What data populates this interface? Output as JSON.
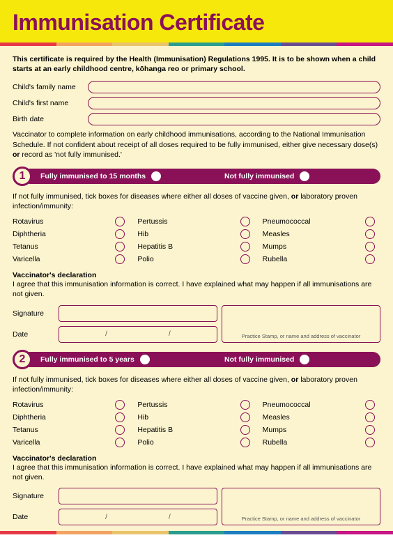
{
  "title": "Immunisation Certificate",
  "intro": "This certificate is required by the Health (Immunisation) Regulations 1995. It is to be shown when a child starts at an early childhood centre, kōhanga reo or primary school.",
  "fields": {
    "family_name_label": "Child's family name",
    "first_name_label": "Child's first name",
    "birth_date_label": "Birth date"
  },
  "vaccinator_note": "Vaccinator to complete information on early childhood immunisations, according to the National Immunisation Schedule. If not confident about receipt of all doses required to be fully immunised, either give necessary dose(s) <b>or</b> record as 'not fully immunised.'",
  "sections": [
    {
      "num": "1",
      "fully_label": "Fully immunised to 15 months",
      "not_fully_label": "Not fully immunised"
    },
    {
      "num": "2",
      "fully_label": "Fully immunised to 5 years",
      "not_fully_label": "Not fully immunised"
    }
  ],
  "tick_instr": "If not fully immunised, tick boxes for diseases where either all doses of vaccine given, <b>or</b> laboratory proven infection/immunity:",
  "diseases_col1": [
    "Rotavirus",
    "Diphtheria",
    "Tetanus",
    "Varicella"
  ],
  "diseases_col2": [
    "Pertussis",
    "Hib",
    "Hepatitis B",
    "Polio"
  ],
  "diseases_col3": [
    "Pneumococcal",
    "Measles",
    "Mumps",
    "Rubella"
  ],
  "declaration": {
    "title": "Vaccinator's declaration",
    "text": "I agree that this immunisation information is correct. I have explained what may happen if all immunisations are not given.",
    "signature_label": "Signature",
    "date_label": "Date",
    "date_sep": "/",
    "stamp_label": "Practice Stamp, or name and address of vaccinator"
  },
  "colors": {
    "page_bg": "#f7e80b",
    "content_bg": "#fcf4cf",
    "brand": "#8a1157",
    "rainbow": [
      "#e63946",
      "#f4a261",
      "#e9c46a",
      "#2a9d8f",
      "#1d7dc1",
      "#6a4c93",
      "#c71585"
    ]
  }
}
